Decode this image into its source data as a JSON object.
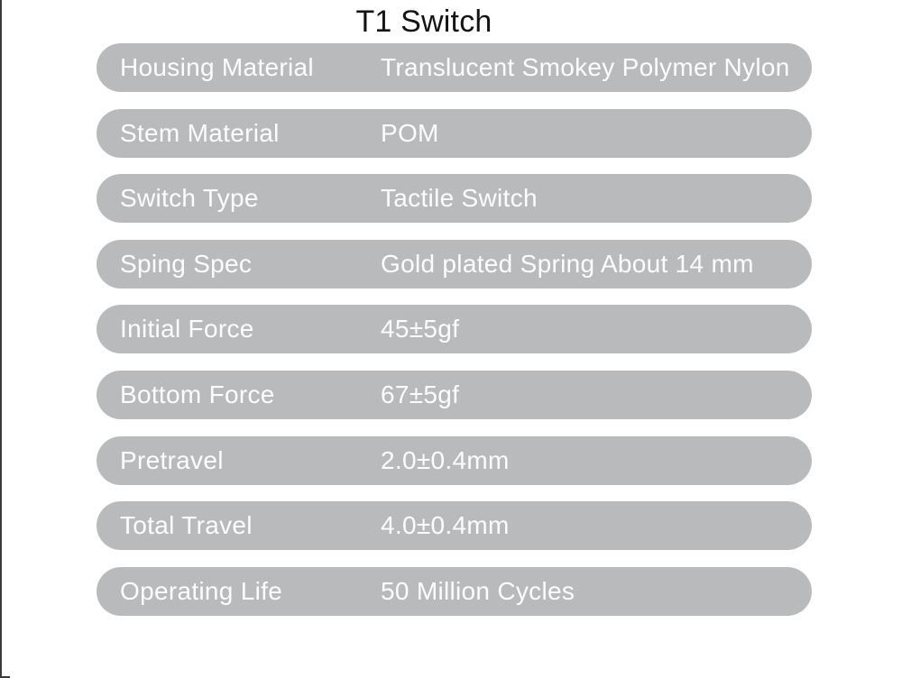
{
  "page": {
    "title": "T1 Switch"
  },
  "table": {
    "rows": [
      {
        "label": "Housing Material",
        "value": "Translucent Smokey Polymer Nylon"
      },
      {
        "label": "Stem Material",
        "value": "POM"
      },
      {
        "label": "Switch Type",
        "value": "Tactile Switch"
      },
      {
        "label": "Sping Spec",
        "value": "Gold plated Spring About 14 mm"
      },
      {
        "label": "Initial Force",
        "value": "45±5gf"
      },
      {
        "label": "Bottom Force",
        "value": "67±5gf"
      },
      {
        "label": "Pretravel",
        "value": "2.0±0.4mm"
      },
      {
        "label": "Total Travel",
        "value": "4.0±0.4mm"
      },
      {
        "label": "Operating Life",
        "value": "50 Million Cycles"
      }
    ]
  },
  "colors": {
    "pill_background": "#b9babc",
    "row_text": "#fdfdfd",
    "title_text": "#141414",
    "page_background": "#ffffff",
    "edge_artifact": "#3a3a3c"
  }
}
